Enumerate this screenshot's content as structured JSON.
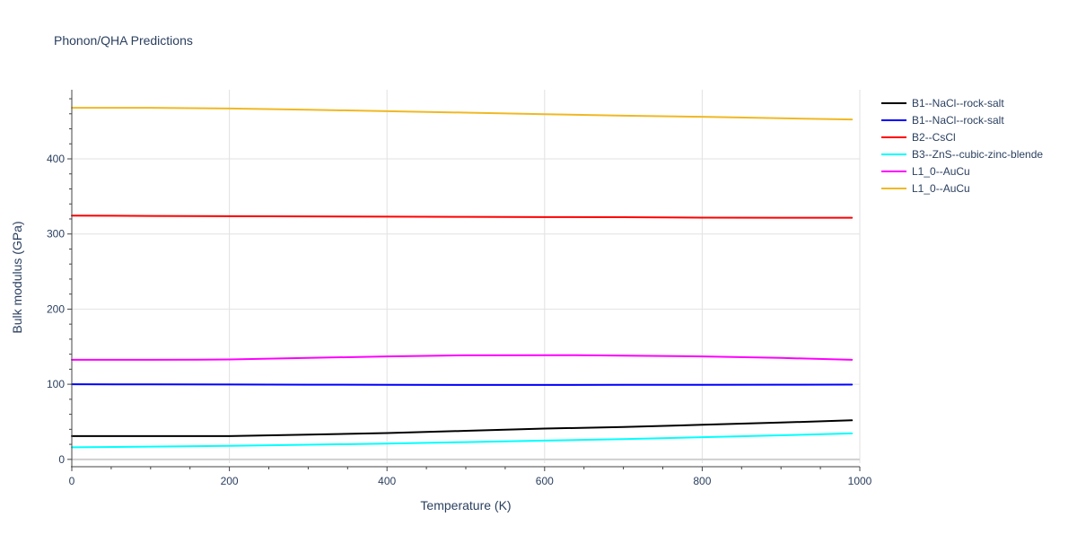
{
  "chart_data": {
    "type": "line",
    "title": "Phonon/QHA Predictions",
    "xlabel": "Temperature (K)",
    "ylabel": "Bulk modulus (GPa)",
    "xlim": [
      0,
      1000
    ],
    "ylim": [
      -5,
      492
    ],
    "xticks": [
      0,
      200,
      400,
      600,
      800,
      1000
    ],
    "yticks": [
      0,
      100,
      200,
      300,
      400
    ],
    "grid": true,
    "legend_position": "top-right",
    "series": [
      {
        "name": "B1--NaCl--rock-salt",
        "color": "#000000",
        "x": [
          0,
          100,
          200,
          300,
          400,
          500,
          600,
          700,
          800,
          900,
          990
        ],
        "y": [
          31,
          31,
          31,
          33,
          35,
          38,
          41,
          43,
          46,
          49,
          52
        ]
      },
      {
        "name": "B1--NaCl--rock-salt",
        "color": "#0000ff",
        "x": [
          0,
          100,
          200,
          300,
          400,
          500,
          600,
          700,
          800,
          900,
          990
        ],
        "y": [
          100,
          99.8,
          99.6,
          99.4,
          99.3,
          99.1,
          99.1,
          99.2,
          99.3,
          99.4,
          99.5
        ]
      },
      {
        "name": "B2--CsCl",
        "color": "#ff0000",
        "x": [
          0,
          100,
          200,
          300,
          400,
          500,
          600,
          700,
          800,
          900,
          990
        ],
        "y": [
          324.5,
          324,
          323.7,
          323.4,
          323.1,
          322.8,
          322.5,
          322.3,
          321.8,
          321.6,
          321.6
        ]
      },
      {
        "name": "B3--ZnS--cubic-zinc-blende",
        "color": "#00ffff",
        "x": [
          0,
          100,
          200,
          300,
          400,
          500,
          600,
          700,
          800,
          900,
          990
        ],
        "y": [
          16,
          17,
          18,
          19.5,
          21,
          23,
          25,
          27,
          29.5,
          32,
          34.5
        ]
      },
      {
        "name": "L1_0--AuCu",
        "color": "#ff00ff",
        "x": [
          0,
          100,
          160,
          200,
          300,
          400,
          500,
          640,
          700,
          800,
          900,
          990
        ],
        "y": [
          132.5,
          132.5,
          132.6,
          133,
          135,
          137,
          138.5,
          138.6,
          138,
          137,
          135,
          132.5
        ]
      },
      {
        "name": "L1_0--AuCu",
        "color": "#f0b823",
        "x": [
          0,
          100,
          200,
          300,
          400,
          500,
          600,
          700,
          800,
          900,
          990
        ],
        "y": [
          468,
          468,
          467,
          465.5,
          463.5,
          461.5,
          459.5,
          457.5,
          456,
          454,
          452.5
        ]
      }
    ]
  }
}
